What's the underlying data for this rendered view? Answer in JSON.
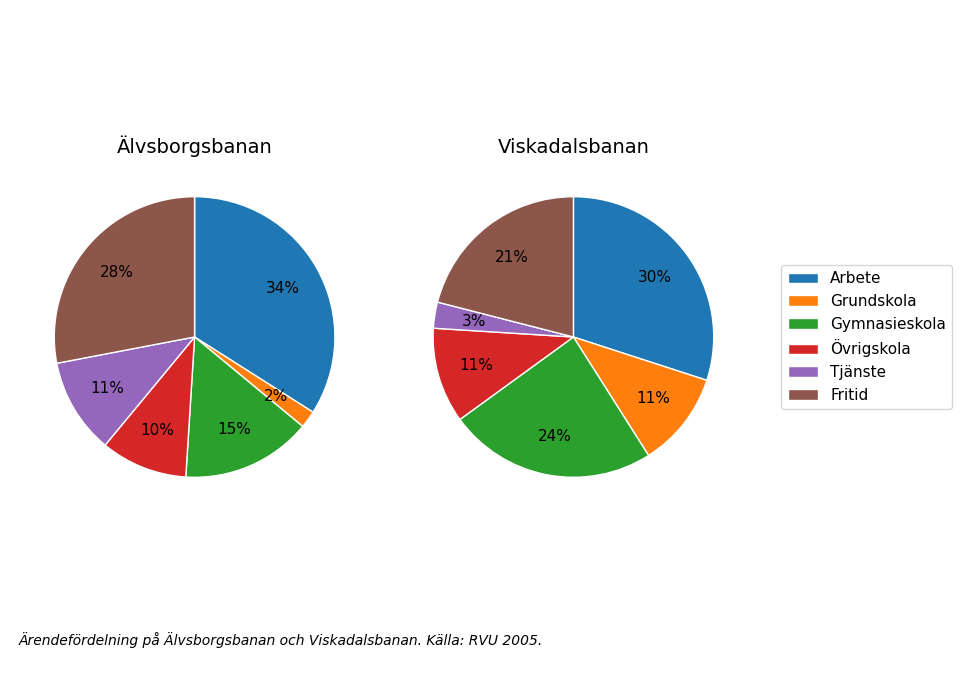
{
  "chart_data": [
    {
      "type": "pie",
      "title": "Älvsborgsbanan",
      "categories": [
        "Arbete",
        "Grundskola",
        "Gymnasieskola",
        "Övrigskola",
        "Tjänste",
        "Fritid"
      ],
      "values": [
        34,
        2,
        15,
        10,
        11,
        28
      ],
      "value_labels": [
        "34%",
        "2%",
        "15%",
        "10%",
        "11%",
        "28%"
      ],
      "data_labels": true,
      "legend": "center right",
      "annotations": [
        "Ärendefördelning på Älvsborgsbanan och Viskadalsbanan. Källa: RVU 2005."
      ]
    },
    {
      "type": "pie",
      "title": "Viskadalsbanan",
      "categories": [
        "Arbete",
        "Grundskola",
        "Gymnasieskola",
        "Övrigskola",
        "Tjänste",
        "Fritid"
      ],
      "values": [
        30,
        11,
        24,
        11,
        3,
        21
      ],
      "value_labels": [
        "30%",
        "11%",
        "24%",
        "11%",
        "3%",
        "21%"
      ],
      "data_labels": true,
      "legend": "center right"
    }
  ]
}
